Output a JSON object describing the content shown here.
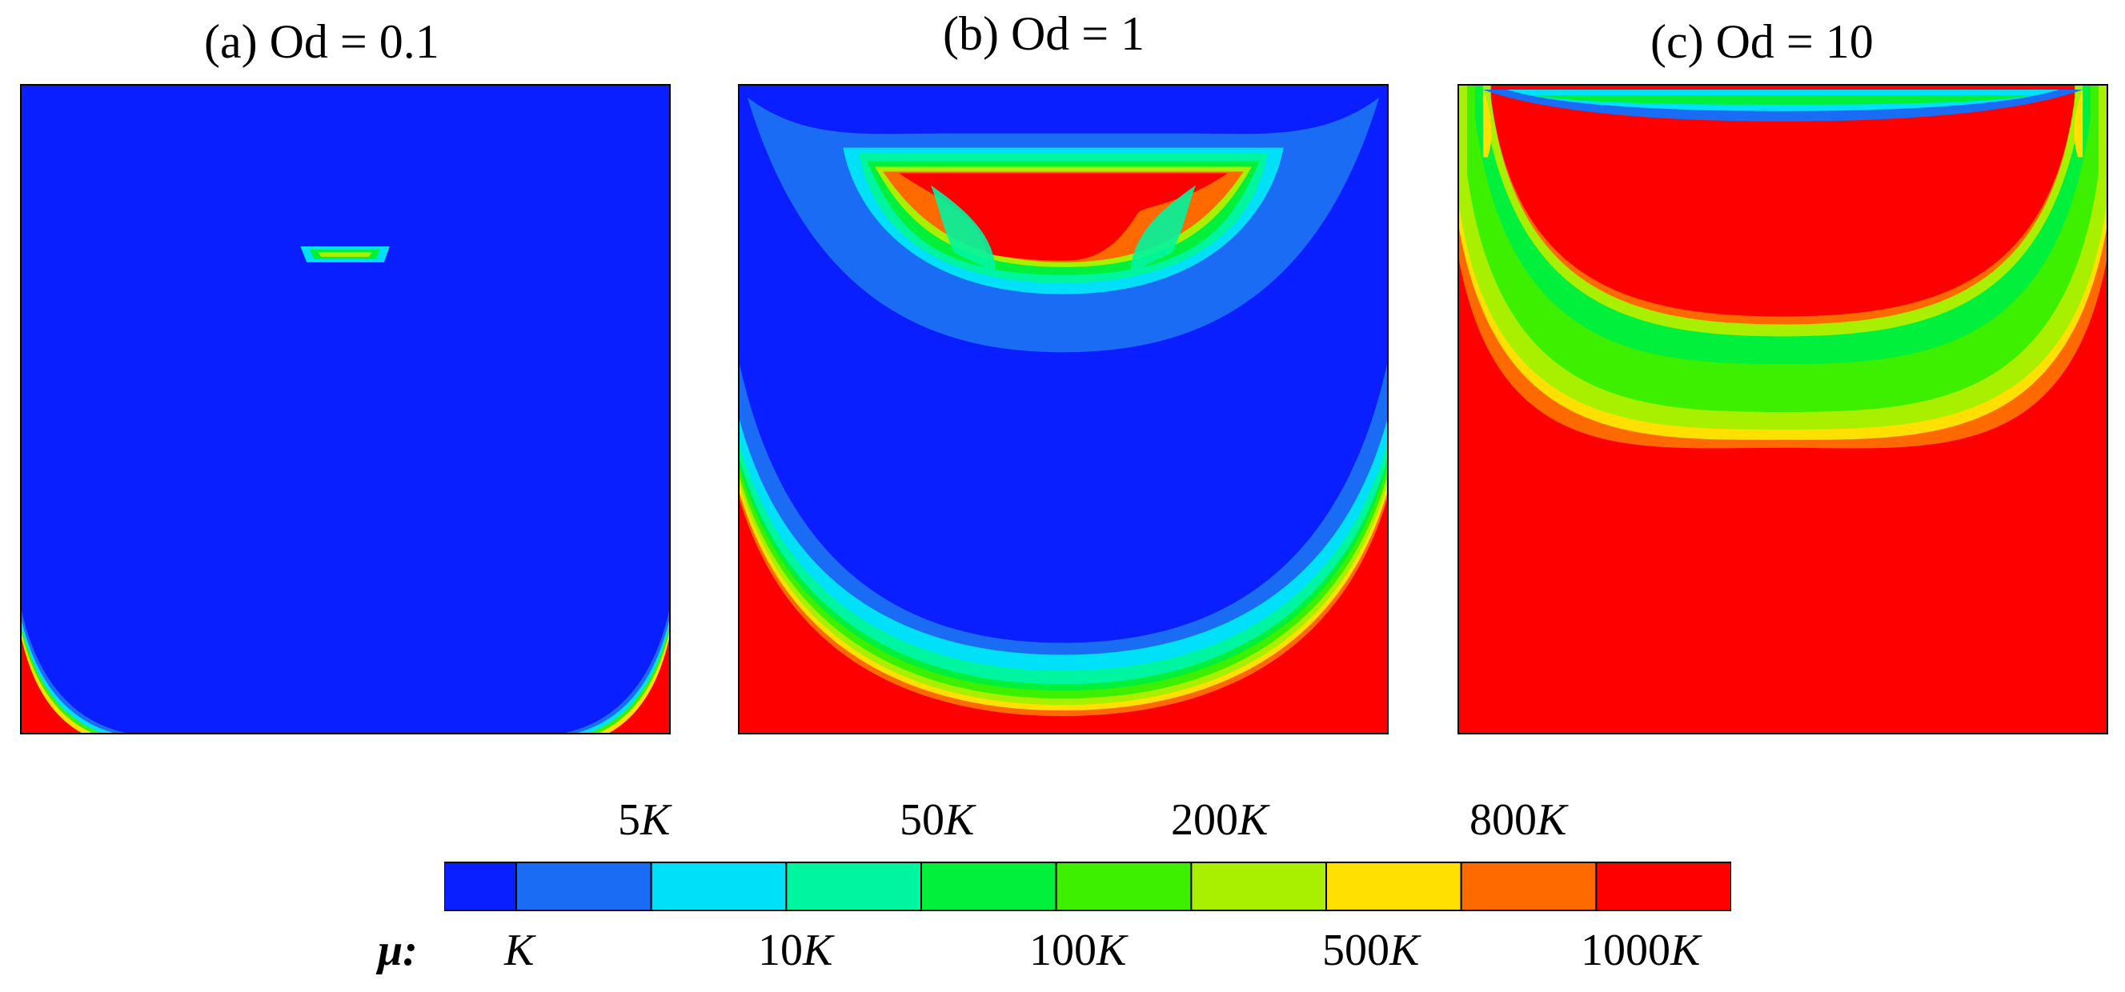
{
  "titles": {
    "a": "(a) Od = 0.1",
    "b": "(b) Od = 1",
    "c": "(c) Od = 10"
  },
  "colorbar": {
    "variable_label": "μ:",
    "top_labels": [
      {
        "num": "5",
        "unit": "K"
      },
      {
        "num": "50",
        "unit": "K"
      },
      {
        "num": "200",
        "unit": "K"
      },
      {
        "num": "800",
        "unit": "K"
      }
    ],
    "bottom_labels": [
      {
        "num": "",
        "unit": "K"
      },
      {
        "num": "10",
        "unit": "K"
      },
      {
        "num": "100",
        "unit": "K"
      },
      {
        "num": "500",
        "unit": "K"
      },
      {
        "num": "1000",
        "unit": "K"
      }
    ],
    "colors": [
      "#0a1fff",
      "#1a6cf5",
      "#00e0f8",
      "#00f5a0",
      "#00f03c",
      "#3cf000",
      "#a8f000",
      "#ffe000",
      "#ff6a00",
      "#ff0000"
    ]
  }
}
